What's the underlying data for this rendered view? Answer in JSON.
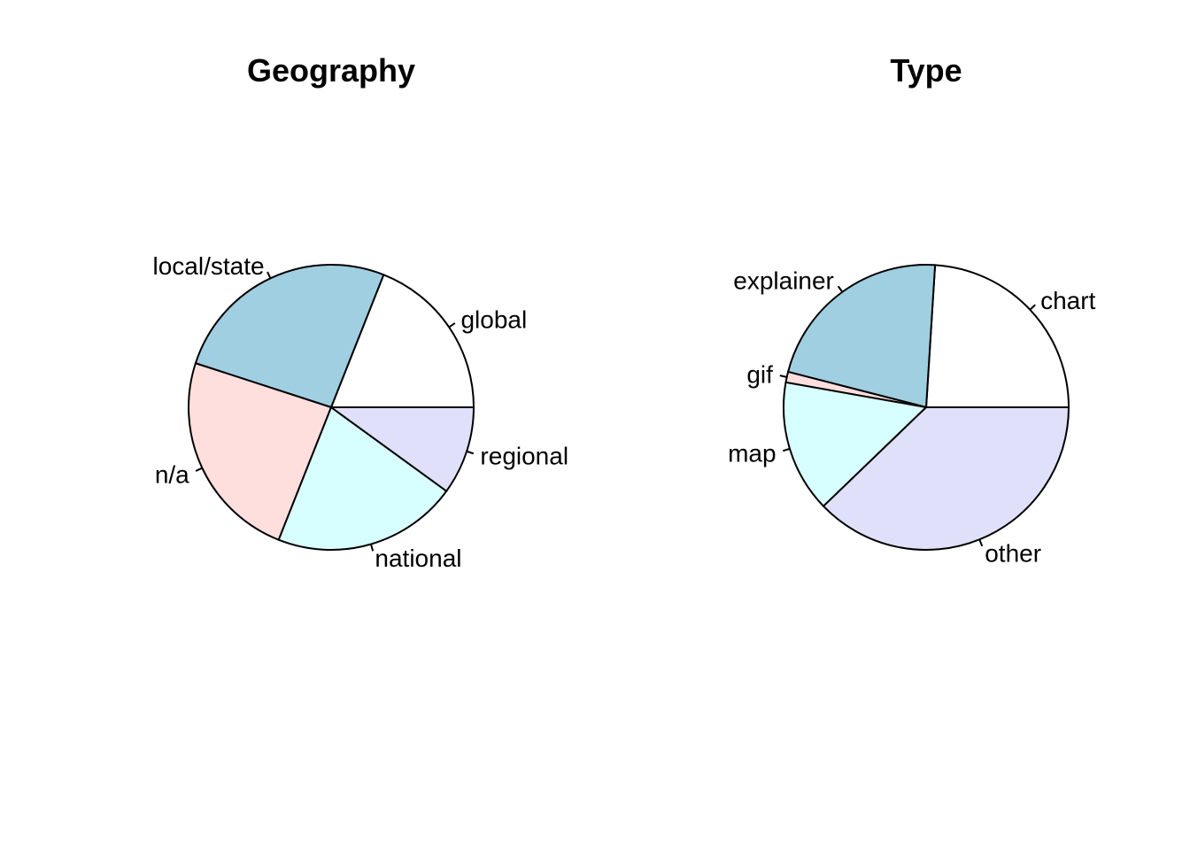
{
  "chart_data": [
    {
      "type": "pie",
      "title": "Geography",
      "categories": [
        "global",
        "local/state",
        "n/a",
        "national",
        "regional"
      ],
      "values": [
        19,
        26,
        24,
        21,
        10
      ],
      "colors": [
        "#FFFFFF",
        "#9FCFE0",
        "#FFDEDE",
        "#D8FFFF",
        "#E0E0FA"
      ],
      "start_angle_deg": 0,
      "direction": "counterclockwise"
    },
    {
      "type": "pie",
      "title": "Type",
      "categories": [
        "chart",
        "explainer",
        "gif",
        "map",
        "other"
      ],
      "values": [
        24,
        22,
        1.2,
        15,
        37.8
      ],
      "colors": [
        "#FFFFFF",
        "#9FCFE0",
        "#FFDEDE",
        "#D8FFFF",
        "#E0E0FA"
      ],
      "start_angle_deg": 0,
      "direction": "counterclockwise"
    }
  ]
}
